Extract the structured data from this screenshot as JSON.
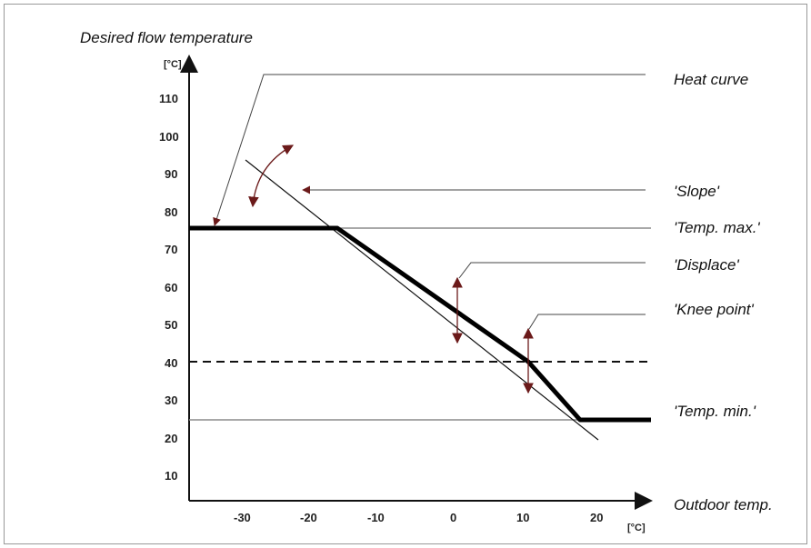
{
  "title": "Desired flow temperature",
  "y_unit": "[°C]",
  "x_unit": "[°C]",
  "x_axis_label": "Outdoor temp.",
  "y_ticks": [
    "110",
    "100",
    "90",
    "80",
    "70",
    "60",
    "50",
    "40",
    "30",
    "20",
    "10"
  ],
  "x_ticks": [
    "-30",
    "-20",
    "-10",
    "0",
    "10",
    "20"
  ],
  "labels": {
    "heat_curve": "Heat curve",
    "slope": "'Slope'",
    "temp_max": "'Temp. max.'",
    "displace": "'Displace'",
    "knee_point": "'Knee point'",
    "temp_min": "'Temp. min.'"
  },
  "colors": {
    "curve": "#000000",
    "reference": "#8c8c8c",
    "arrow": "#7a1f1f",
    "border": "#999999"
  }
}
